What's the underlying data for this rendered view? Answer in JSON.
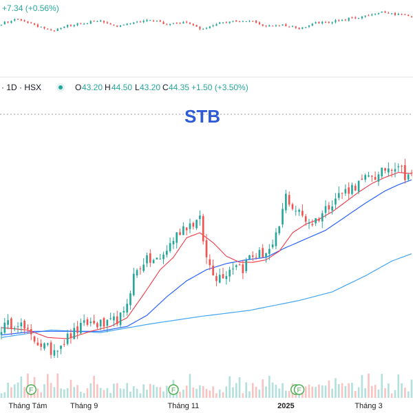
{
  "header": {
    "top_change": "+7.34 (+0.56%)",
    "interval_label": "· 1D · HSX",
    "o_label": "O",
    "o_value": "43.20",
    "h_label": "H",
    "h_value": "44.50",
    "l_label": "L",
    "l_value": "43.20",
    "c_label": "C",
    "c_value": "44.35",
    "change": "+1.50 (+3.50%)"
  },
  "colors": {
    "up": "#26a69a",
    "down": "#ef5350",
    "ma_fast": "#f23645",
    "ma_mid": "#2962ff",
    "ma_slow": "#42a5f5",
    "title": "#2d5bd7",
    "marker": "#4caf50"
  },
  "chart_data": [
    {
      "type": "candlestick",
      "title": "STB",
      "exchange": "HSX",
      "interval": "1D",
      "x_labels": [
        "Tháng Tám",
        "Tháng 9",
        "Tháng 11",
        "2025",
        "Tháng 3"
      ],
      "x_label_positions": [
        8,
        25,
        55,
        86,
        111
      ],
      "n_sessions": 125,
      "close_keypoints": [
        [
          0,
          31.8
        ],
        [
          5,
          32.3
        ],
        [
          9,
          31.0
        ],
        [
          15,
          29.9
        ],
        [
          21,
          31.2
        ],
        [
          26,
          32.2
        ],
        [
          32,
          32.0
        ],
        [
          37,
          32.8
        ],
        [
          40,
          36.0
        ],
        [
          43,
          37.2
        ],
        [
          48,
          37.3
        ],
        [
          52,
          39.0
        ],
        [
          55,
          40.0
        ],
        [
          60,
          40.5
        ],
        [
          62,
          37.4
        ],
        [
          65,
          35.9
        ],
        [
          68,
          36.3
        ],
        [
          71,
          37.1
        ],
        [
          73,
          36.6
        ],
        [
          75,
          37.6
        ],
        [
          79,
          37.8
        ],
        [
          82,
          38.2
        ],
        [
          84,
          40.0
        ],
        [
          86,
          42.5
        ],
        [
          88,
          41.6
        ],
        [
          90,
          41.1
        ],
        [
          92,
          40.6
        ],
        [
          94,
          40.3
        ],
        [
          96,
          40.8
        ],
        [
          99,
          41.8
        ],
        [
          102,
          42.6
        ],
        [
          106,
          43.2
        ],
        [
          109,
          43.6
        ],
        [
          112,
          44.2
        ],
        [
          114,
          44.0
        ],
        [
          116,
          44.7
        ],
        [
          118,
          44.9
        ],
        [
          120,
          45.1
        ],
        [
          122,
          44.2
        ],
        [
          124,
          44.35
        ]
      ],
      "ma_fast_keypoints": [
        [
          0,
          31.8
        ],
        [
          8,
          31.6
        ],
        [
          14,
          31.0
        ],
        [
          20,
          30.9
        ],
        [
          27,
          31.5
        ],
        [
          33,
          31.9
        ],
        [
          38,
          32.6
        ],
        [
          43,
          34.5
        ],
        [
          48,
          36.5
        ],
        [
          52,
          37.5
        ],
        [
          56,
          39.1
        ],
        [
          60,
          39.5
        ],
        [
          64,
          38.7
        ],
        [
          68,
          37.6
        ],
        [
          72,
          37.1
        ],
        [
          76,
          37.1
        ],
        [
          80,
          37.3
        ],
        [
          84,
          38.0
        ],
        [
          88,
          39.5
        ],
        [
          92,
          40.2
        ],
        [
          96,
          40.6
        ],
        [
          100,
          41.2
        ],
        [
          104,
          42.0
        ],
        [
          108,
          42.8
        ],
        [
          112,
          43.5
        ],
        [
          116,
          44.0
        ],
        [
          120,
          44.4
        ],
        [
          124,
          44.3
        ]
      ],
      "ma_mid_keypoints": [
        [
          0,
          31.2
        ],
        [
          10,
          31.5
        ],
        [
          20,
          31.5
        ],
        [
          30,
          31.5
        ],
        [
          38,
          31.9
        ],
        [
          44,
          32.8
        ],
        [
          50,
          34.3
        ],
        [
          56,
          35.6
        ],
        [
          62,
          36.5
        ],
        [
          68,
          37.0
        ],
        [
          74,
          37.3
        ],
        [
          80,
          37.5
        ],
        [
          86,
          38.3
        ],
        [
          92,
          39.0
        ],
        [
          98,
          39.7
        ],
        [
          104,
          40.8
        ],
        [
          110,
          41.9
        ],
        [
          116,
          42.9
        ],
        [
          120,
          43.4
        ],
        [
          124,
          43.8
        ]
      ],
      "ma_slow_keypoints": [
        [
          0,
          31.0
        ],
        [
          15,
          31.6
        ],
        [
          30,
          31.4
        ],
        [
          45,
          32.1
        ],
        [
          60,
          32.7
        ],
        [
          75,
          33.2
        ],
        [
          90,
          34.0
        ],
        [
          100,
          34.7
        ],
        [
          110,
          36.0
        ],
        [
          118,
          37.2
        ],
        [
          124,
          37.8
        ]
      ],
      "ylim": [
        28.5,
        47.5
      ],
      "volume": {
        "ylim": [
          0,
          1
        ],
        "event_markers": [
          {
            "label": "F",
            "x": 9
          },
          {
            "label": "F",
            "x": 52
          },
          {
            "label": "F",
            "x": 89
          },
          {
            "label": "F",
            "x": 90
          }
        ]
      }
    },
    {
      "type": "candlestick",
      "title": "",
      "n_sessions": 125,
      "close_keypoints": [
        [
          0,
          1282
        ],
        [
          5,
          1290
        ],
        [
          10,
          1278
        ],
        [
          15,
          1266
        ],
        [
          20,
          1277
        ],
        [
          25,
          1283
        ],
        [
          30,
          1288
        ],
        [
          35,
          1276
        ],
        [
          40,
          1282
        ],
        [
          45,
          1290
        ],
        [
          50,
          1280
        ],
        [
          55,
          1286
        ],
        [
          60,
          1270
        ],
        [
          65,
          1281
        ],
        [
          70,
          1285
        ],
        [
          75,
          1289
        ],
        [
          80,
          1276
        ],
        [
          85,
          1280
        ],
        [
          90,
          1272
        ],
        [
          95,
          1284
        ],
        [
          100,
          1286
        ],
        [
          105,
          1292
        ],
        [
          110,
          1298
        ],
        [
          115,
          1305
        ],
        [
          120,
          1300
        ],
        [
          124,
          1298
        ]
      ],
      "ylim": [
        1230,
        1320
      ]
    }
  ]
}
